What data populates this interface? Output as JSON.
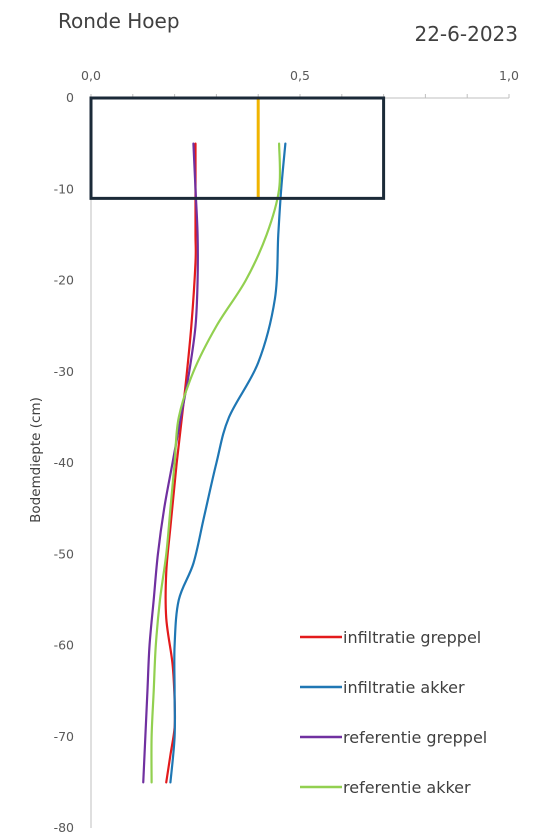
{
  "chart_data": {
    "type": "line",
    "orientation": "depth-profile",
    "title": "Ronde Hoep",
    "date": "22-6-2023",
    "xlabel": "",
    "ylabel": "Bodemdiepte (cm)",
    "xlim": [
      0,
      1.0
    ],
    "ylim": [
      -80,
      0
    ],
    "x_ticks": [
      {
        "value": 0,
        "label": "0,0"
      },
      {
        "value": 0.5,
        "label": "0,5"
      },
      {
        "value": 1.0,
        "label": "1,0"
      }
    ],
    "y_ticks": [
      {
        "value": 0,
        "label": "0"
      },
      {
        "value": -10,
        "label": "-10"
      },
      {
        "value": -20,
        "label": "-20"
      },
      {
        "value": -30,
        "label": "-30"
      },
      {
        "value": -40,
        "label": "-40"
      },
      {
        "value": -50,
        "label": "-50"
      },
      {
        "value": -60,
        "label": "-60"
      },
      {
        "value": -70,
        "label": "-70"
      },
      {
        "value": -80,
        "label": "-80"
      }
    ],
    "grid": false,
    "legend_position": "bottom-right",
    "series": [
      {
        "name": "infiltratie  greppel",
        "color": "#e31a1c",
        "points": [
          [
            0.25,
            -5
          ],
          [
            0.25,
            -10
          ],
          [
            0.25,
            -15
          ],
          [
            0.25,
            -18
          ],
          [
            0.24,
            -25
          ],
          [
            0.225,
            -32
          ],
          [
            0.205,
            -40
          ],
          [
            0.19,
            -47
          ],
          [
            0.18,
            -52
          ],
          [
            0.18,
            -57
          ],
          [
            0.195,
            -62
          ],
          [
            0.2,
            -66
          ],
          [
            0.2,
            -69
          ],
          [
            0.19,
            -72
          ],
          [
            0.18,
            -75
          ]
        ]
      },
      {
        "name": "infiltratie  akker",
        "color": "#1f77b4",
        "points": [
          [
            0.465,
            -5
          ],
          [
            0.455,
            -10
          ],
          [
            0.448,
            -15
          ],
          [
            0.44,
            -22
          ],
          [
            0.4,
            -29
          ],
          [
            0.33,
            -35
          ],
          [
            0.3,
            -40
          ],
          [
            0.27,
            -46
          ],
          [
            0.245,
            -51
          ],
          [
            0.21,
            -55
          ],
          [
            0.2,
            -60
          ],
          [
            0.2,
            -65
          ],
          [
            0.2,
            -70
          ],
          [
            0.19,
            -75
          ]
        ]
      },
      {
        "name": "referentie greppel",
        "color": "#7030a0",
        "points": [
          [
            0.245,
            -5
          ],
          [
            0.25,
            -10
          ],
          [
            0.255,
            -15
          ],
          [
            0.255,
            -20
          ],
          [
            0.25,
            -25
          ],
          [
            0.235,
            -30
          ],
          [
            0.215,
            -35
          ],
          [
            0.195,
            -40
          ],
          [
            0.175,
            -45
          ],
          [
            0.16,
            -50
          ],
          [
            0.15,
            -55
          ],
          [
            0.14,
            -60
          ],
          [
            0.135,
            -65
          ],
          [
            0.13,
            -70
          ],
          [
            0.125,
            -75
          ]
        ]
      },
      {
        "name": "referentie akker",
        "color": "#92d050",
        "points": [
          [
            0.45,
            -5
          ],
          [
            0.45,
            -10
          ],
          [
            0.42,
            -15
          ],
          [
            0.37,
            -20
          ],
          [
            0.3,
            -25
          ],
          [
            0.245,
            -30
          ],
          [
            0.21,
            -35
          ],
          [
            0.2,
            -40
          ],
          [
            0.19,
            -45
          ],
          [
            0.18,
            -50
          ],
          [
            0.165,
            -55
          ],
          [
            0.155,
            -60
          ],
          [
            0.15,
            -65
          ],
          [
            0.145,
            -70
          ],
          [
            0.145,
            -75
          ]
        ]
      }
    ],
    "annotations": {
      "box": {
        "x_range": [
          0,
          0.7
        ],
        "y_range": [
          -11,
          0
        ],
        "stroke": "#1b2a38"
      },
      "vertical_line": {
        "x": 0.4,
        "y_range": [
          -11,
          0
        ],
        "color": "#f0b400"
      }
    }
  }
}
